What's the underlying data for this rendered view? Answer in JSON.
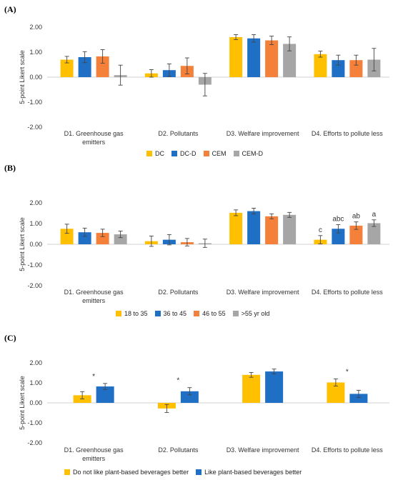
{
  "colors": [
    "#FFC000",
    "#1F6FC5",
    "#F4803A",
    "#A6A6A6"
  ],
  "chart_data": [
    {
      "panel": "(A)",
      "type": "bar",
      "ylabel": "5-point Likert scale",
      "ylim": [
        -2,
        2
      ],
      "yticks": [
        "2.00",
        "1.00",
        "0.00",
        "-1.00",
        "-2.00"
      ],
      "categories": [
        [
          "D1. Greenhouse gas",
          "emitters"
        ],
        [
          "D2. Pollutants"
        ],
        [
          "D3. Welfare improvement"
        ],
        [
          "D4. Efforts to pollute less"
        ]
      ],
      "series": [
        {
          "name": "DC",
          "values": [
            0.7,
            0.15,
            1.6,
            0.92
          ],
          "errors": [
            0.13,
            0.15,
            0.1,
            0.12
          ]
        },
        {
          "name": "DC-D",
          "values": [
            0.8,
            0.28,
            1.55,
            0.68
          ],
          "errors": [
            0.22,
            0.25,
            0.15,
            0.2
          ]
        },
        {
          "name": "CEM",
          "values": [
            0.83,
            0.45,
            1.47,
            0.68
          ],
          "errors": [
            0.27,
            0.32,
            0.17,
            0.2
          ]
        },
        {
          "name": "CEM-D",
          "values": [
            0.08,
            -0.3,
            1.33,
            0.7
          ],
          "errors": [
            0.4,
            0.45,
            0.28,
            0.45
          ]
        }
      ]
    },
    {
      "panel": "(B)",
      "type": "bar",
      "ylabel": "5-point Likert scale",
      "ylim": [
        -2,
        2
      ],
      "yticks": [
        "2.00",
        "1.00",
        "0.00",
        "-1.00",
        "-2.00"
      ],
      "categories": [
        [
          "D1. Greenhouse gas",
          "emitters"
        ],
        [
          "D2. Pollutants"
        ],
        [
          "D3. Welfare improvement"
        ],
        [
          "D4. Efforts to pollute less"
        ]
      ],
      "series": [
        {
          "name": "18 to 35",
          "values": [
            0.75,
            0.15,
            1.52,
            0.22
          ],
          "errors": [
            0.22,
            0.25,
            0.14,
            0.2
          ]
        },
        {
          "name": "36 to 45",
          "values": [
            0.58,
            0.22,
            1.6,
            0.75
          ],
          "errors": [
            0.2,
            0.25,
            0.14,
            0.2
          ]
        },
        {
          "name": "46 to 55",
          "values": [
            0.55,
            0.1,
            1.35,
            0.9
          ],
          "errors": [
            0.18,
            0.18,
            0.12,
            0.18
          ]
        },
        {
          "name": ">55 yr old",
          "values": [
            0.48,
            0.05,
            1.42,
            1.02
          ],
          "errors": [
            0.16,
            0.2,
            0.12,
            0.16
          ]
        }
      ],
      "annotations": [
        {
          "category": 3,
          "series": 0,
          "text": "c"
        },
        {
          "category": 3,
          "series": 1,
          "text": "abc"
        },
        {
          "category": 3,
          "series": 2,
          "text": "ab"
        },
        {
          "category": 3,
          "series": 3,
          "text": "a"
        }
      ]
    },
    {
      "panel": "(C)",
      "type": "bar",
      "ylabel": "5-point Likert scale",
      "ylim": [
        -2,
        2
      ],
      "yticks": [
        "2.00",
        "1.00",
        "0.00",
        "-1.00",
        "-2.00"
      ],
      "categories": [
        [
          "D1. Greenhouse gas",
          "emitters"
        ],
        [
          "D2. Pollutants"
        ],
        [
          "D3. Welfare improvement"
        ],
        [
          "D4. Efforts to pollute less"
        ]
      ],
      "series": [
        {
          "name": "Do not like plant-based beverages better",
          "values": [
            0.38,
            -0.28,
            1.4,
            1.02
          ],
          "errors": [
            0.18,
            0.2,
            0.12,
            0.18
          ]
        },
        {
          "name": "Like plant-based beverages better",
          "values": [
            0.82,
            0.58,
            1.57,
            0.45
          ],
          "errors": [
            0.15,
            0.18,
            0.12,
            0.18
          ]
        }
      ],
      "annotations": [
        {
          "category": 0,
          "text": "*"
        },
        {
          "category": 1,
          "text": "*"
        },
        {
          "category": 3,
          "text": "*"
        }
      ]
    }
  ]
}
